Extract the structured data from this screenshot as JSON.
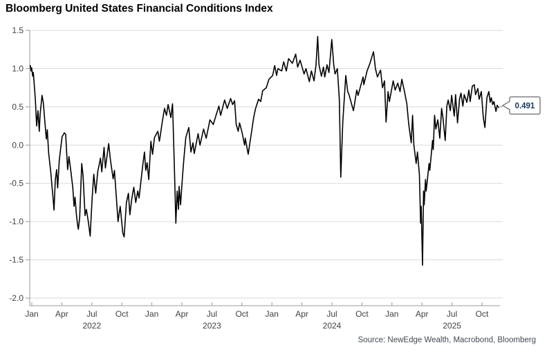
{
  "header": {
    "title": "Bloomberg United States Financial Conditions Index"
  },
  "footer": {
    "source": "Source: NewEdge Wealth, Macrobond, Bloomberg"
  },
  "chart": {
    "last_value_label": "0.491",
    "colors": {
      "line": "#000000",
      "grid": "#d9d9d9",
      "axis": "#999999",
      "tick_text": "#404040",
      "callout_text": "#17375e",
      "callout_border": "#7f7f7f",
      "callout_fill": "#ffffff"
    },
    "y_axis": {
      "ticks": [
        1.5,
        1.0,
        0.5,
        0.0,
        -0.5,
        -1.0,
        -1.5,
        -2.0
      ],
      "labels": [
        "1.5",
        "1.0",
        "0.5",
        "0.0",
        "-0.5",
        "-1.0",
        "-1.5",
        "-2.0"
      ]
    },
    "x_axis": {
      "quarter_labels": [
        "Jan",
        "Apr",
        "Jul",
        "Oct",
        "Jan",
        "Apr",
        "Jul",
        "Oct",
        "Jan",
        "Apr",
        "Jul",
        "Oct",
        "Jan",
        "Apr",
        "Jul",
        "Oct"
      ],
      "year_labels": [
        "2022",
        "2023",
        "2024",
        "2025"
      ]
    }
  },
  "chart_data": {
    "type": "line",
    "title": "Bloomberg United States Financial Conditions Index",
    "xlabel": "",
    "ylabel": "",
    "ylim": [
      -2.0,
      1.5
    ],
    "x_range": [
      "2022-01-03",
      "2025-11-26"
    ],
    "grid": "horizontal",
    "legend_position": "none",
    "last_value": 0.491,
    "series": [
      {
        "name": "Bloomberg US Financial Conditions Index",
        "points": [
          [
            "2022-01-03",
            1.04
          ],
          [
            "2022-01-05",
            0.97
          ],
          [
            "2022-01-07",
            1.01
          ],
          [
            "2022-01-10",
            0.9
          ],
          [
            "2022-01-12",
            0.95
          ],
          [
            "2022-01-18",
            0.6
          ],
          [
            "2022-01-22",
            0.25
          ],
          [
            "2022-01-26",
            0.45
          ],
          [
            "2022-01-30",
            0.18
          ],
          [
            "2022-02-02",
            0.4
          ],
          [
            "2022-02-08",
            0.65
          ],
          [
            "2022-02-12",
            0.55
          ],
          [
            "2022-02-17",
            0.28
          ],
          [
            "2022-02-21",
            0.08
          ],
          [
            "2022-02-24",
            0.2
          ],
          [
            "2022-02-28",
            -0.1
          ],
          [
            "2022-03-04",
            -0.35
          ],
          [
            "2022-03-08",
            -0.55
          ],
          [
            "2022-03-12",
            -0.74
          ],
          [
            "2022-03-14",
            -0.85
          ],
          [
            "2022-03-18",
            -0.45
          ],
          [
            "2022-03-22",
            -0.32
          ],
          [
            "2022-03-25",
            -0.56
          ],
          [
            "2022-03-30",
            -0.2
          ],
          [
            "2022-04-05",
            0.0
          ],
          [
            "2022-04-08",
            0.11
          ],
          [
            "2022-04-15",
            0.16
          ],
          [
            "2022-04-19",
            0.14
          ],
          [
            "2022-04-22",
            -0.1
          ],
          [
            "2022-04-25",
            -0.32
          ],
          [
            "2022-04-29",
            -0.15
          ],
          [
            "2022-05-03",
            -0.3
          ],
          [
            "2022-05-10",
            -0.55
          ],
          [
            "2022-05-14",
            -0.8
          ],
          [
            "2022-05-17",
            -0.68
          ],
          [
            "2022-05-21",
            -0.9
          ],
          [
            "2022-05-25",
            -1.05
          ],
          [
            "2022-05-27",
            -1.1
          ],
          [
            "2022-05-31",
            -0.95
          ],
          [
            "2022-06-07",
            -0.24
          ],
          [
            "2022-06-11",
            -0.4
          ],
          [
            "2022-06-17",
            -0.92
          ],
          [
            "2022-06-21",
            -0.84
          ],
          [
            "2022-06-27",
            -1.0
          ],
          [
            "2022-07-02",
            -1.19
          ],
          [
            "2022-07-08",
            -0.7
          ],
          [
            "2022-07-13",
            -0.38
          ],
          [
            "2022-07-19",
            -0.63
          ],
          [
            "2022-07-25",
            -0.35
          ],
          [
            "2022-08-03",
            -0.17
          ],
          [
            "2022-08-07",
            -0.35
          ],
          [
            "2022-08-14",
            -0.03
          ],
          [
            "2022-08-18",
            -0.3
          ],
          [
            "2022-08-28",
            0.02
          ],
          [
            "2022-09-03",
            -0.2
          ],
          [
            "2022-09-11",
            -0.44
          ],
          [
            "2022-09-15",
            -0.33
          ],
          [
            "2022-09-26",
            -1.0
          ],
          [
            "2022-10-02",
            -0.8
          ],
          [
            "2022-10-10",
            -1.15
          ],
          [
            "2022-10-14",
            -1.2
          ],
          [
            "2022-10-21",
            -0.75
          ],
          [
            "2022-10-27",
            -0.63
          ],
          [
            "2022-11-01",
            -0.91
          ],
          [
            "2022-11-07",
            -0.7
          ],
          [
            "2022-11-13",
            -0.55
          ],
          [
            "2022-11-19",
            -0.75
          ],
          [
            "2022-11-25",
            -0.6
          ],
          [
            "2022-11-29",
            -0.69
          ],
          [
            "2022-12-09",
            -0.29
          ],
          [
            "2022-12-15",
            -0.09
          ],
          [
            "2022-12-19",
            -0.33
          ],
          [
            "2022-12-23",
            -0.23
          ],
          [
            "2022-12-28",
            -0.45
          ],
          [
            "2023-01-04",
            0.05
          ],
          [
            "2023-01-09",
            -0.12
          ],
          [
            "2023-01-15",
            0.1
          ],
          [
            "2023-01-25",
            0.18
          ],
          [
            "2023-01-30",
            0.05
          ],
          [
            "2023-02-02",
            0.12
          ],
          [
            "2023-02-08",
            0.3
          ],
          [
            "2023-02-15",
            0.48
          ],
          [
            "2023-02-21",
            0.39
          ],
          [
            "2023-02-26",
            0.53
          ],
          [
            "2023-03-04",
            0.36
          ],
          [
            "2023-03-09",
            0.54
          ],
          [
            "2023-03-14",
            -0.2
          ],
          [
            "2023-03-19",
            -1.02
          ],
          [
            "2023-03-23",
            -0.6
          ],
          [
            "2023-03-27",
            -0.84
          ],
          [
            "2023-03-29",
            -0.54
          ],
          [
            "2023-04-03",
            -0.78
          ],
          [
            "2023-04-09",
            -0.4
          ],
          [
            "2023-04-13",
            -0.18
          ],
          [
            "2023-04-19",
            0.1
          ],
          [
            "2023-04-28",
            0.23
          ],
          [
            "2023-05-04",
            -0.09
          ],
          [
            "2023-05-10",
            0.03
          ],
          [
            "2023-05-14",
            -0.11
          ],
          [
            "2023-05-26",
            0.15
          ],
          [
            "2023-06-01",
            0.0
          ],
          [
            "2023-06-12",
            0.21
          ],
          [
            "2023-06-20",
            0.09
          ],
          [
            "2023-07-01",
            0.33
          ],
          [
            "2023-07-11",
            0.27
          ],
          [
            "2023-07-28",
            0.51
          ],
          [
            "2023-08-03",
            0.39
          ],
          [
            "2023-08-15",
            0.59
          ],
          [
            "2023-08-23",
            0.48
          ],
          [
            "2023-09-03",
            0.61
          ],
          [
            "2023-09-09",
            0.53
          ],
          [
            "2023-09-15",
            0.58
          ],
          [
            "2023-09-20",
            0.27
          ],
          [
            "2023-09-26",
            0.18
          ],
          [
            "2023-09-30",
            0.29
          ],
          [
            "2023-10-07",
            0.17
          ],
          [
            "2023-10-15",
            0.0
          ],
          [
            "2023-10-17",
            0.09
          ],
          [
            "2023-10-26",
            -0.12
          ],
          [
            "2023-11-06",
            0.18
          ],
          [
            "2023-11-12",
            0.36
          ],
          [
            "2023-11-18",
            0.48
          ],
          [
            "2023-11-27",
            0.6
          ],
          [
            "2023-12-03",
            0.57
          ],
          [
            "2023-12-09",
            0.71
          ],
          [
            "2023-12-20",
            0.75
          ],
          [
            "2023-12-28",
            0.86
          ],
          [
            "2024-01-09",
            0.91
          ],
          [
            "2024-01-15",
            1.04
          ],
          [
            "2024-01-21",
            0.91
          ],
          [
            "2024-01-25",
            1.0
          ],
          [
            "2024-02-06",
            0.97
          ],
          [
            "2024-02-12",
            1.09
          ],
          [
            "2024-02-20",
            0.97
          ],
          [
            "2024-02-27",
            1.13
          ],
          [
            "2024-03-08",
            1.07
          ],
          [
            "2024-03-18",
            1.19
          ],
          [
            "2024-03-24",
            1.02
          ],
          [
            "2024-04-01",
            1.11
          ],
          [
            "2024-04-13",
            0.93
          ],
          [
            "2024-04-19",
            1.0
          ],
          [
            "2024-04-29",
            0.83
          ],
          [
            "2024-05-05",
            0.97
          ],
          [
            "2024-05-13",
            0.84
          ],
          [
            "2024-05-19",
            1.05
          ],
          [
            "2024-05-24",
            1.42
          ],
          [
            "2024-05-28",
            1.05
          ],
          [
            "2024-06-05",
            0.9
          ],
          [
            "2024-06-11",
            1.02
          ],
          [
            "2024-06-15",
            0.89
          ],
          [
            "2024-06-22",
            1.05
          ],
          [
            "2024-06-28",
            0.95
          ],
          [
            "2024-07-06",
            1.38
          ],
          [
            "2024-07-12",
            1.05
          ],
          [
            "2024-07-16",
            0.93
          ],
          [
            "2024-07-23",
            1.0
          ],
          [
            "2024-07-29",
            0.6
          ],
          [
            "2024-08-03",
            -0.42
          ],
          [
            "2024-08-09",
            0.3
          ],
          [
            "2024-08-18",
            0.91
          ],
          [
            "2024-08-24",
            0.7
          ],
          [
            "2024-08-28",
            0.66
          ],
          [
            "2024-09-05",
            0.54
          ],
          [
            "2024-09-11",
            0.45
          ],
          [
            "2024-09-21",
            0.72
          ],
          [
            "2024-09-25",
            0.65
          ],
          [
            "2024-10-10",
            0.89
          ],
          [
            "2024-10-12",
            0.79
          ],
          [
            "2024-10-22",
            0.97
          ],
          [
            "2024-10-30",
            1.06
          ],
          [
            "2024-11-11",
            1.22
          ],
          [
            "2024-11-17",
            1.0
          ],
          [
            "2024-11-23",
            0.89
          ],
          [
            "2024-12-02",
            0.98
          ],
          [
            "2024-12-08",
            0.75
          ],
          [
            "2024-12-14",
            0.84
          ],
          [
            "2024-12-19",
            0.3
          ],
          [
            "2024-12-25",
            0.7
          ],
          [
            "2024-12-29",
            0.57
          ],
          [
            "2025-01-10",
            0.84
          ],
          [
            "2025-01-16",
            0.72
          ],
          [
            "2025-01-24",
            0.81
          ],
          [
            "2025-01-31",
            0.7
          ],
          [
            "2025-02-06",
            0.86
          ],
          [
            "2025-02-14",
            0.7
          ],
          [
            "2025-02-21",
            0.54
          ],
          [
            "2025-02-27",
            0.27
          ],
          [
            "2025-03-04",
            0.03
          ],
          [
            "2025-03-08",
            0.39
          ],
          [
            "2025-03-12",
            0.0
          ],
          [
            "2025-03-19",
            -0.24
          ],
          [
            "2025-03-23",
            -0.09
          ],
          [
            "2025-03-29",
            -0.39
          ],
          [
            "2025-04-02",
            -1.02
          ],
          [
            "2025-04-04",
            -0.8
          ],
          [
            "2025-04-08",
            -1.57
          ],
          [
            "2025-04-11",
            -0.6
          ],
          [
            "2025-04-13",
            -0.78
          ],
          [
            "2025-04-17",
            -0.45
          ],
          [
            "2025-04-19",
            -0.6
          ],
          [
            "2025-04-28",
            -0.24
          ],
          [
            "2025-04-30",
            -0.33
          ],
          [
            "2025-05-08",
            0.06
          ],
          [
            "2025-05-10",
            -0.06
          ],
          [
            "2025-05-14",
            0.39
          ],
          [
            "2025-05-18",
            0.21
          ],
          [
            "2025-05-24",
            0.33
          ],
          [
            "2025-05-30",
            0.09
          ],
          [
            "2025-06-05",
            0.48
          ],
          [
            "2025-06-09",
            0.36
          ],
          [
            "2025-06-16",
            0.06
          ],
          [
            "2025-06-21",
            0.51
          ],
          [
            "2025-06-25",
            0.59
          ],
          [
            "2025-07-01",
            0.45
          ],
          [
            "2025-07-05",
            0.65
          ],
          [
            "2025-07-13",
            0.38
          ],
          [
            "2025-07-17",
            0.66
          ],
          [
            "2025-07-23",
            0.29
          ],
          [
            "2025-07-29",
            0.6
          ],
          [
            "2025-08-03",
            0.68
          ],
          [
            "2025-08-09",
            0.51
          ],
          [
            "2025-08-13",
            0.66
          ],
          [
            "2025-08-21",
            0.56
          ],
          [
            "2025-08-27",
            0.72
          ],
          [
            "2025-08-31",
            0.57
          ],
          [
            "2025-09-07",
            0.77
          ],
          [
            "2025-09-13",
            0.79
          ],
          [
            "2025-09-17",
            0.66
          ],
          [
            "2025-09-24",
            0.74
          ],
          [
            "2025-09-28",
            0.6
          ],
          [
            "2025-10-04",
            0.7
          ],
          [
            "2025-10-10",
            0.36
          ],
          [
            "2025-10-15",
            0.23
          ],
          [
            "2025-10-21",
            0.62
          ],
          [
            "2025-10-27",
            0.7
          ],
          [
            "2025-10-31",
            0.56
          ],
          [
            "2025-11-04",
            0.62
          ],
          [
            "2025-11-08",
            0.53
          ],
          [
            "2025-11-12",
            0.57
          ],
          [
            "2025-11-18",
            0.44
          ],
          [
            "2025-11-22",
            0.52
          ],
          [
            "2025-11-26",
            0.491
          ]
        ]
      }
    ]
  }
}
